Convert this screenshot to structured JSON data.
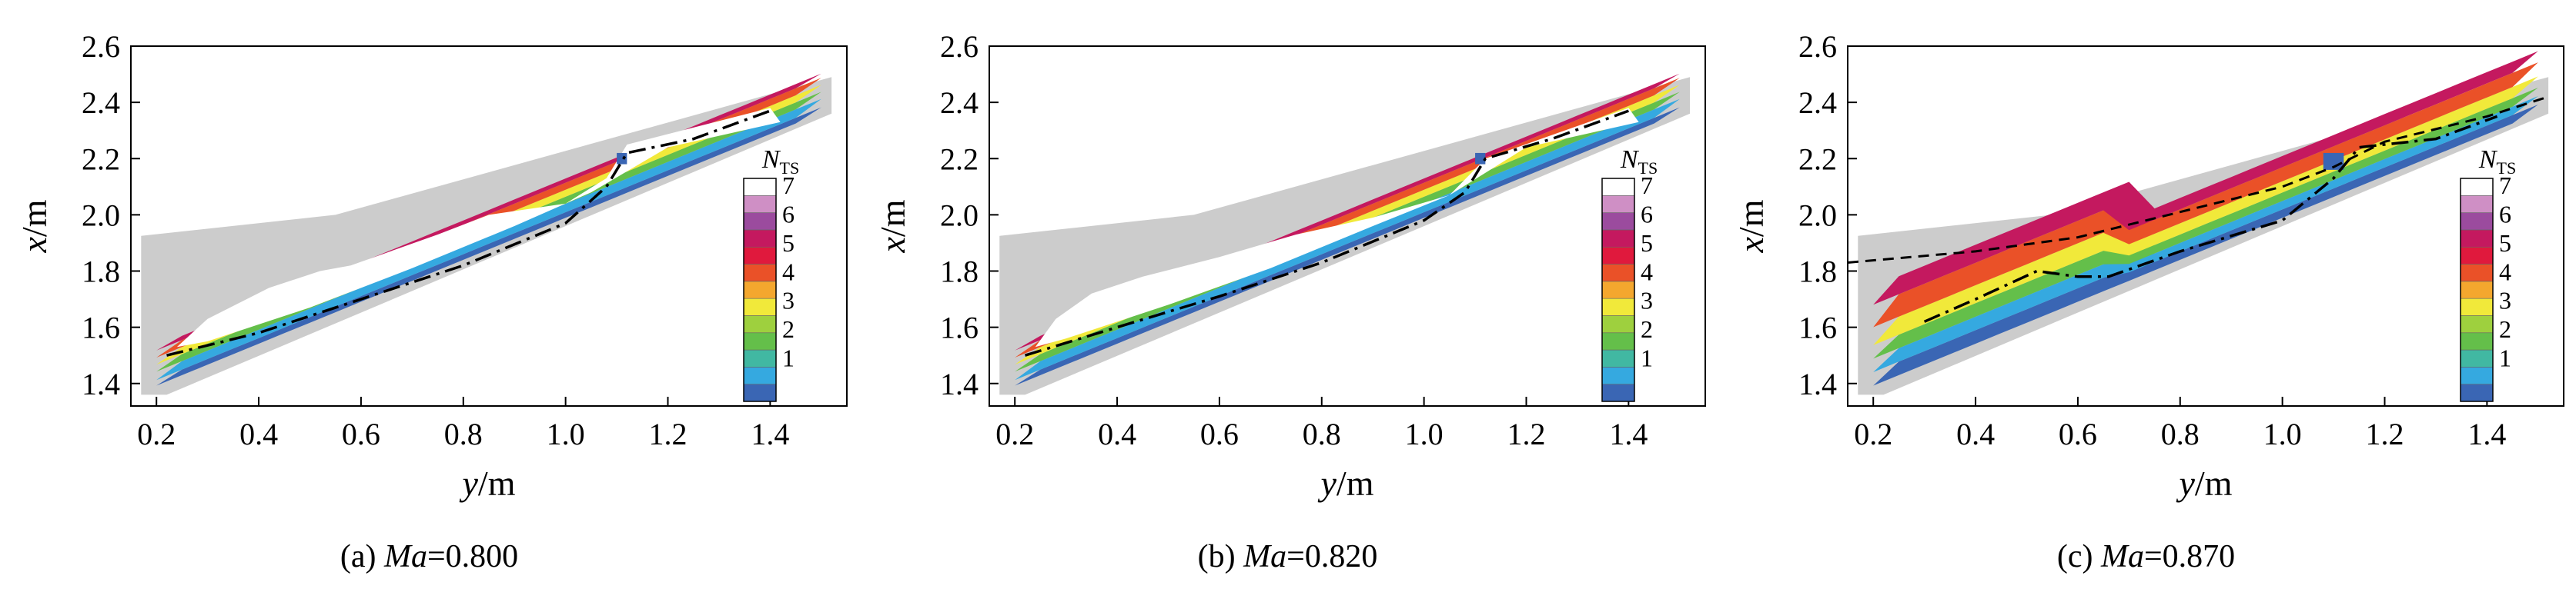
{
  "chart_data": [
    {
      "type": "heatmap",
      "panel_label": "(a) ",
      "mach_symbol": "Ma",
      "mach_value": "=0.800",
      "xlabel_var": "y",
      "xlabel_unit": "/m",
      "ylabel_var": "x",
      "ylabel_unit": "/m",
      "xlim": [
        0.15,
        1.55
      ],
      "ylim": [
        1.32,
        2.6
      ],
      "xticks": [
        "0.2",
        "0.4",
        "0.6",
        "0.8",
        "1.0",
        "1.2",
        "1.4"
      ],
      "yticks": [
        "1.4",
        "1.6",
        "1.8",
        "2.0",
        "2.2",
        "2.4",
        "2.6"
      ],
      "legend_title_main": "N",
      "legend_title_sub": "TS",
      "legend_ticks": [
        "1",
        "2",
        "3",
        "4",
        "5",
        "6",
        "7"
      ],
      "legend_range": [
        0,
        7
      ],
      "colors": {
        "background_region": "#cccccc",
        "levels": [
          "#3a66b4",
          "#35a9e0",
          "#41b8a2",
          "#64bf4a",
          "#9ed03e",
          "#f1e93a",
          "#f4a72e",
          "#ea5128",
          "#e0193d",
          "#c4195f",
          "#9b4b9e",
          "#cf8fc5",
          "#ffffff"
        ]
      },
      "dash_curve_upper": [],
      "dashdot_curve": [
        [
          0.22,
          1.5
        ],
        [
          0.4,
          1.58
        ],
        [
          0.6,
          1.7
        ],
        [
          0.8,
          1.82
        ],
        [
          1.0,
          1.97
        ],
        [
          1.08,
          2.1
        ],
        [
          1.12,
          2.22
        ],
        [
          1.25,
          2.27
        ],
        [
          1.4,
          2.37
        ]
      ]
    },
    {
      "type": "heatmap",
      "panel_label": "(b) ",
      "mach_symbol": "Ma",
      "mach_value": "=0.820",
      "xlabel_var": "y",
      "xlabel_unit": "/m",
      "ylabel_var": "x",
      "ylabel_unit": "/m",
      "xlim": [
        0.15,
        1.55
      ],
      "ylim": [
        1.32,
        2.6
      ],
      "xticks": [
        "0.2",
        "0.4",
        "0.6",
        "0.8",
        "1.0",
        "1.2",
        "1.4"
      ],
      "yticks": [
        "1.4",
        "1.6",
        "1.8",
        "2.0",
        "2.2",
        "2.4",
        "2.6"
      ],
      "legend_title_main": "N",
      "legend_title_sub": "TS",
      "legend_ticks": [
        "1",
        "2",
        "3",
        "4",
        "5",
        "6",
        "7"
      ],
      "legend_range": [
        0,
        7
      ],
      "colors": {
        "background_region": "#cccccc",
        "levels": [
          "#3a66b4",
          "#35a9e0",
          "#41b8a2",
          "#64bf4a",
          "#9ed03e",
          "#f1e93a",
          "#f4a72e",
          "#ea5128",
          "#e0193d",
          "#c4195f",
          "#9b4b9e",
          "#cf8fc5",
          "#ffffff"
        ]
      },
      "dash_curve_upper": [],
      "dashdot_curve": [
        [
          0.22,
          1.5
        ],
        [
          0.4,
          1.6
        ],
        [
          0.6,
          1.71
        ],
        [
          0.8,
          1.83
        ],
        [
          1.0,
          1.98
        ],
        [
          1.08,
          2.08
        ],
        [
          1.12,
          2.2
        ],
        [
          1.25,
          2.27
        ],
        [
          1.4,
          2.37
        ]
      ]
    },
    {
      "type": "heatmap",
      "panel_label": "(c) ",
      "mach_symbol": "Ma",
      "mach_value": "=0.870",
      "xlabel_var": "y",
      "xlabel_unit": "/m",
      "ylabel_var": "x",
      "ylabel_unit": "/m",
      "xlim": [
        0.15,
        1.55
      ],
      "ylim": [
        1.32,
        2.6
      ],
      "xticks": [
        "0.2",
        "0.4",
        "0.6",
        "0.8",
        "1.0",
        "1.2",
        "1.4"
      ],
      "yticks": [
        "1.4",
        "1.6",
        "1.8",
        "2.0",
        "2.2",
        "2.4",
        "2.6"
      ],
      "legend_title_main": "N",
      "legend_title_sub": "TS",
      "legend_ticks": [
        "1",
        "2",
        "3",
        "4",
        "5",
        "6",
        "7"
      ],
      "legend_range": [
        0,
        7
      ],
      "colors": {
        "background_region": "#cccccc",
        "levels": [
          "#3a66b4",
          "#35a9e0",
          "#41b8a2",
          "#64bf4a",
          "#9ed03e",
          "#f1e93a",
          "#f4a72e",
          "#ea5128",
          "#e0193d",
          "#c4195f",
          "#9b4b9e",
          "#cf8fc5",
          "#ffffff"
        ]
      },
      "dash_curve_upper": [
        [
          0.15,
          1.83
        ],
        [
          0.4,
          1.87
        ],
        [
          0.6,
          1.92
        ],
        [
          0.8,
          2.01
        ],
        [
          1.0,
          2.1
        ],
        [
          1.1,
          2.17
        ],
        [
          1.2,
          2.26
        ],
        [
          1.4,
          2.35
        ],
        [
          1.52,
          2.42
        ]
      ],
      "dashdot_curve": [
        [
          0.3,
          1.62
        ],
        [
          0.4,
          1.7
        ],
        [
          0.52,
          1.8
        ],
        [
          0.6,
          1.78
        ],
        [
          0.66,
          1.78
        ],
        [
          0.8,
          1.87
        ],
        [
          1.0,
          1.98
        ],
        [
          1.1,
          2.13
        ],
        [
          1.15,
          2.24
        ],
        [
          1.3,
          2.27
        ],
        [
          1.42,
          2.35
        ]
      ]
    }
  ]
}
